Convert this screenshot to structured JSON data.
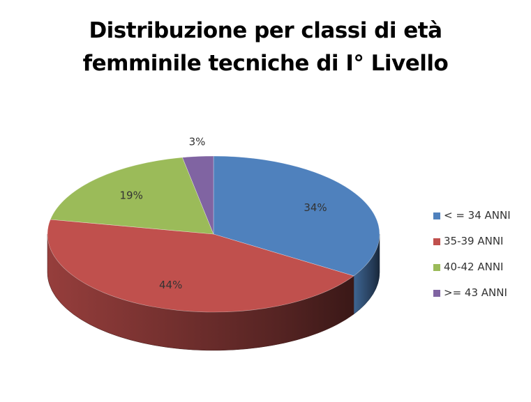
{
  "chart_data": {
    "type": "pie",
    "style": "3d",
    "title": "Distribuzione per classi di età femminile tecniche di I° Livello",
    "title_lines": [
      "Distribuzione per classi di età",
      "femminile tecniche di I° Livello"
    ],
    "legend_position": "right",
    "slices": [
      {
        "label": "< = 34 ANNI",
        "value": 34,
        "value_label": "34%",
        "color": "#4F81BD"
      },
      {
        "label": "35-39 ANNI",
        "value": 44,
        "value_label": "44%",
        "color": "#C0504D"
      },
      {
        "label": "40-42 ANNI",
        "value": 19,
        "value_label": "19%",
        "color": "#9BBB59"
      },
      {
        "label": ">= 43 ANNI",
        "value": 3,
        "value_label": "3%",
        "color": "#8064A2"
      }
    ]
  }
}
